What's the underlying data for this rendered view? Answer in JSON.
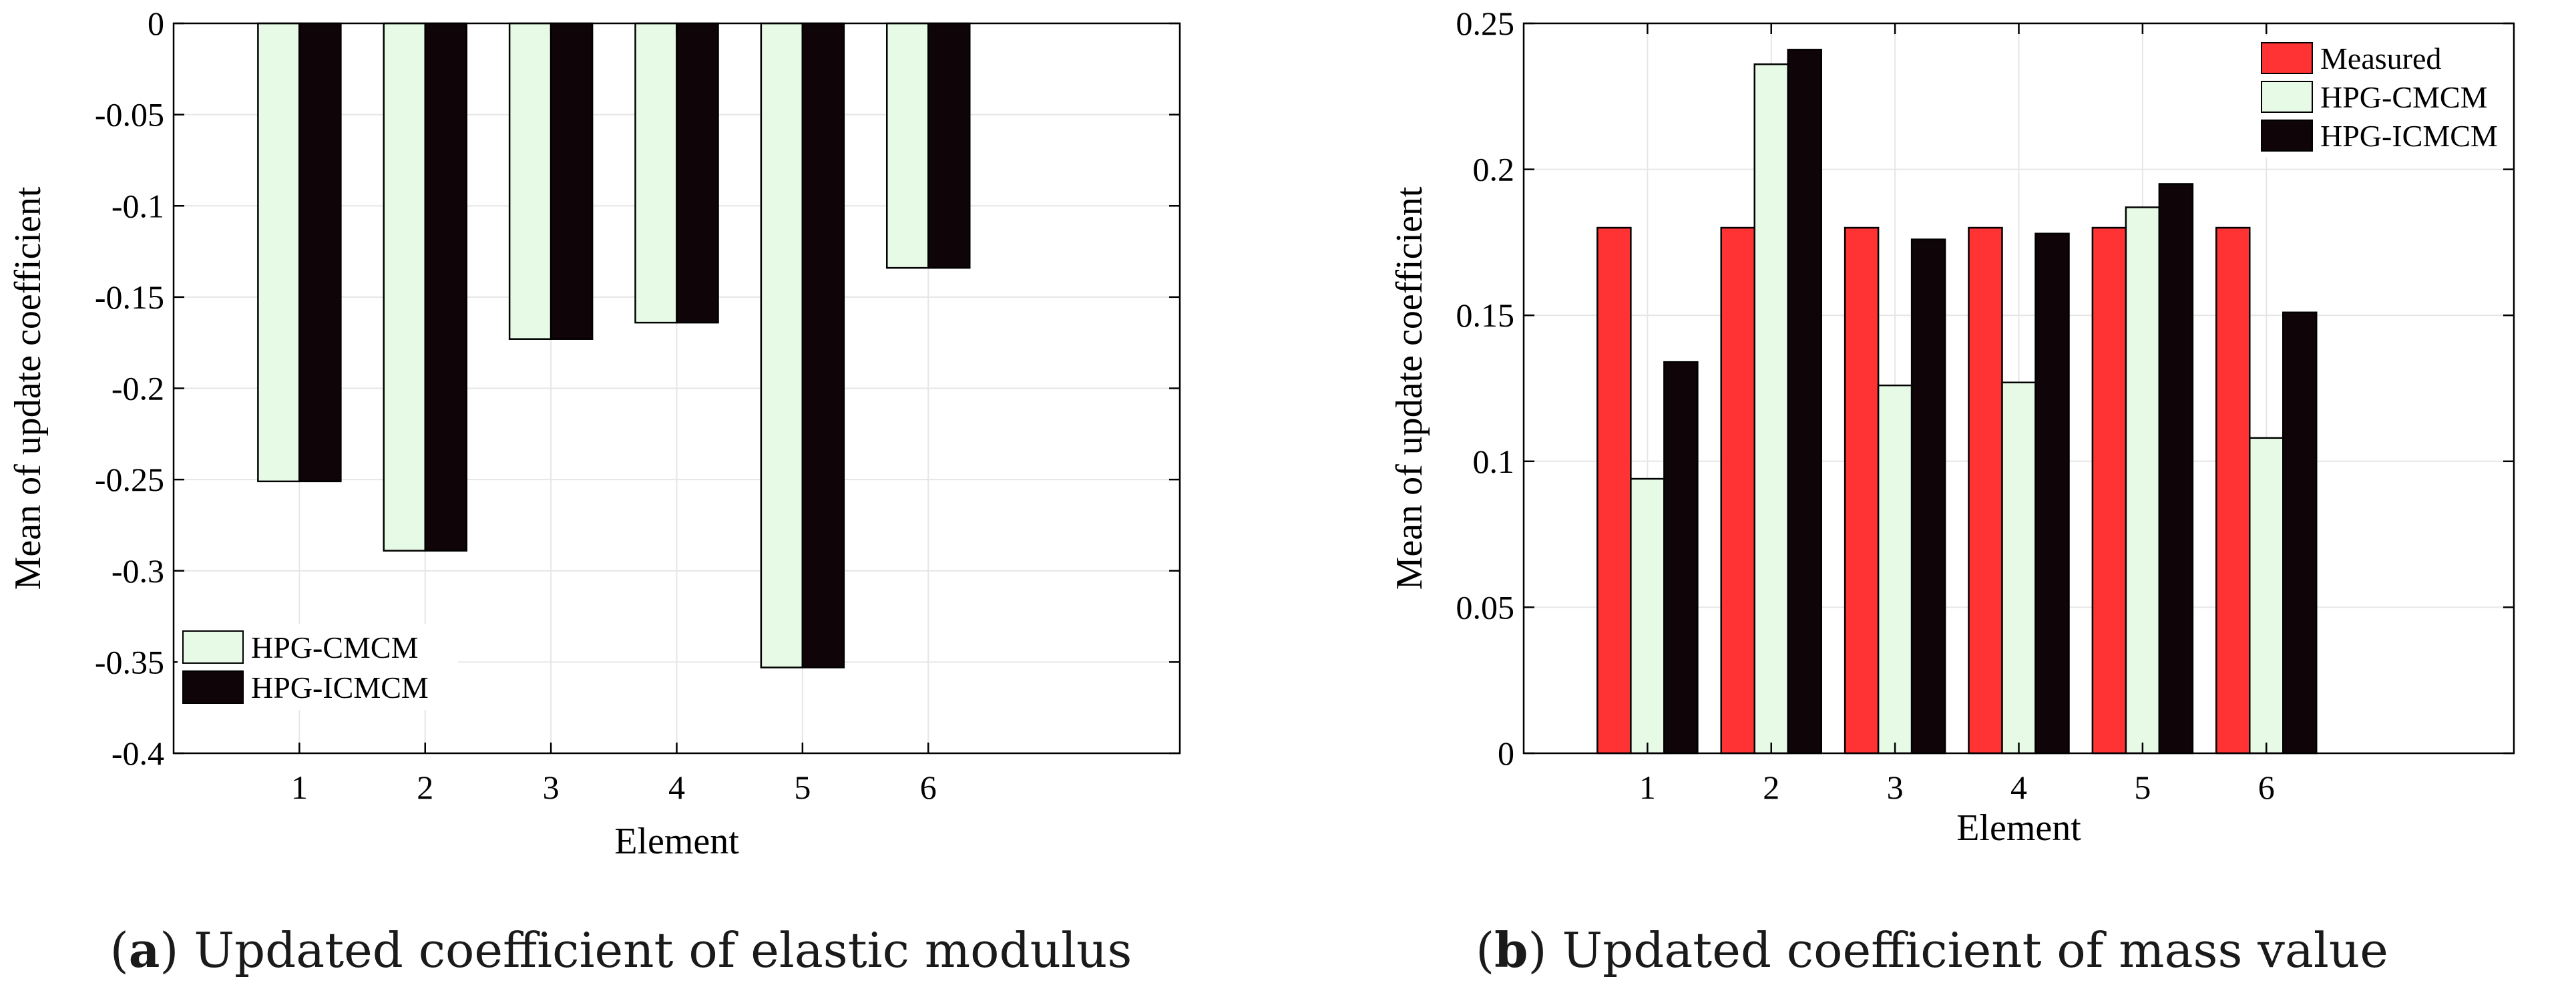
{
  "chart_data": [
    {
      "type": "bar",
      "title": "",
      "xlabel": "Element",
      "ylabel": "Mean of update coefficient",
      "categories": [
        "1",
        "2",
        "3",
        "4",
        "5",
        "6"
      ],
      "ylim": [
        -0.4,
        0
      ],
      "yticks": [
        "0",
        "-0.05",
        "-0.1",
        "-0.15",
        "-0.2",
        "-0.25",
        "-0.3",
        "-0.35",
        "-0.4"
      ],
      "grid": true,
      "legend_position": "bottom-left",
      "series": [
        {
          "name": "HPG-CMCM",
          "color": "#e6fae6",
          "values": [
            -0.251,
            -0.289,
            -0.173,
            -0.164,
            -0.353,
            -0.134
          ]
        },
        {
          "name": "HPG-ICMCM",
          "color": "#0f0509",
          "values": [
            -0.251,
            -0.289,
            -0.173,
            -0.164,
            -0.353,
            -0.134
          ]
        }
      ],
      "caption_letter": "a",
      "caption_text": "Updated coefficient of elastic modulus"
    },
    {
      "type": "bar",
      "title": "",
      "xlabel": "Element",
      "ylabel": "Mean of update coefficient",
      "categories": [
        "1",
        "2",
        "3",
        "4",
        "5",
        "6"
      ],
      "ylim": [
        0,
        0.25
      ],
      "yticks": [
        "0",
        "0.05",
        "0.1",
        "0.15",
        "0.2",
        "0.25"
      ],
      "grid": true,
      "legend_position": "top-right",
      "series": [
        {
          "name": "Measured",
          "color": "#ff3333",
          "values": [
            0.18,
            0.18,
            0.18,
            0.18,
            0.18,
            0.18
          ]
        },
        {
          "name": "HPG-CMCM",
          "color": "#e6fae6",
          "values": [
            0.094,
            0.236,
            0.126,
            0.127,
            0.187,
            0.108
          ]
        },
        {
          "name": "HPG-ICMCM",
          "color": "#0f0509",
          "values": [
            0.134,
            0.241,
            0.176,
            0.178,
            0.195,
            0.151
          ]
        }
      ],
      "caption_letter": "b",
      "caption_text": "Updated coefficient of mass value"
    }
  ]
}
